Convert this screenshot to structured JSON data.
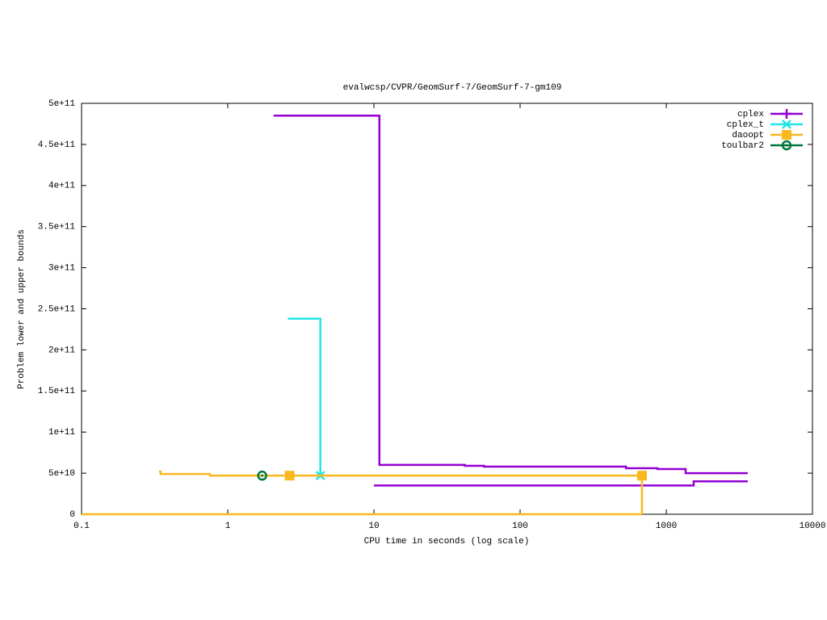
{
  "chart_data": {
    "type": "line",
    "title": "evalwcsp/CVPR/GeomSurf-7/GeomSurf-7-gm109",
    "xlabel": "CPU time in seconds (log scale)",
    "ylabel": "Problem lower and upper bounds",
    "xscale": "log",
    "xlim": [
      0.1,
      10000
    ],
    "xticks": [
      0.1,
      1,
      10,
      100,
      1000,
      10000
    ],
    "ylim": [
      0,
      500000000000
    ],
    "yticks": [
      0,
      {
        "value": 50000000000,
        "label": "5e+10"
      },
      {
        "value": 100000000000,
        "label": "1e+11"
      },
      {
        "value": 150000000000,
        "label": "1.5e+11"
      },
      {
        "value": 200000000000,
        "label": "2e+11"
      },
      {
        "value": 250000000000,
        "label": "2.5e+11"
      },
      {
        "value": 300000000000,
        "label": "3e+11"
      },
      {
        "value": 350000000000,
        "label": "3.5e+11"
      },
      {
        "value": 400000000000,
        "label": "4e+11"
      },
      {
        "value": 450000000000,
        "label": "4.5e+11"
      },
      {
        "value": 500000000000,
        "label": "5e+11"
      }
    ],
    "legend": "top-right",
    "series": [
      {
        "name": "cplex",
        "color": "#9400d3",
        "marker": "plus",
        "x": [
          2.06,
          10.9,
          10.9,
          41.8,
          41.8,
          56.6,
          56.6,
          530,
          530,
          869,
          869,
          1356,
          1356,
          3610,
          null,
          10.0,
          1540,
          1540,
          3610
        ],
        "values": [
          485000000000,
          485000000000,
          60000000000,
          60000000000,
          59000000000,
          59000000000,
          58000000000,
          58000000000,
          56000000000,
          56000000000,
          55000000000,
          55000000000,
          50000000000,
          50000000000,
          null,
          35000000000,
          35000000000,
          40000000000,
          40000000000
        ],
        "points": {
          "x": [],
          "values": []
        }
      },
      {
        "name": "cplex_t",
        "color": "#22e5e5",
        "marker": "star",
        "x": [
          2.58,
          4.3,
          4.3
        ],
        "values": [
          238000000000,
          238000000000,
          47000000000
        ],
        "points": {
          "x": [
            4.3
          ],
          "values": [
            47000000000
          ]
        }
      },
      {
        "name": "daoopt",
        "color": "#f8b820",
        "marker": "square",
        "x": [
          0.339,
          0.348,
          0.348,
          0.754,
          0.754,
          682,
          682,
          null,
          0.1,
          682
        ],
        "values": [
          52000000000,
          52000000000,
          49000000000,
          49000000000,
          47000000000,
          47000000000,
          0,
          null,
          0,
          0
        ],
        "points": {
          "x": [
            2.65,
            682
          ],
          "values": [
            47000000000,
            47000000000
          ]
        }
      },
      {
        "name": "toulbar2",
        "color": "#007a3a",
        "marker": "circle",
        "x": [],
        "values": [],
        "points": {
          "x": [
            1.72
          ],
          "values": [
            47000000000
          ]
        }
      }
    ]
  }
}
